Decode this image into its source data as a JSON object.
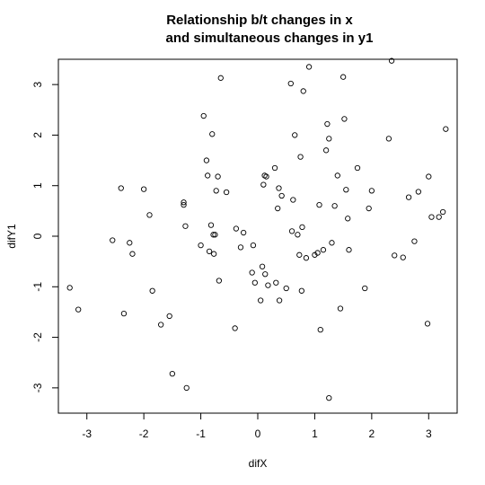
{
  "chart_data": {
    "type": "scatter",
    "title_line1": "Relationship b/t changes in x",
    "title_line2": "and simultaneous changes in y1",
    "xlabel": "difX",
    "ylabel": "difY1",
    "xlim": [
      -3.5,
      3.5
    ],
    "ylim": [
      -3.5,
      3.5
    ],
    "x_ticks": [
      -3,
      -2,
      -1,
      0,
      1,
      2,
      3
    ],
    "y_ticks": [
      -3,
      -2,
      -1,
      0,
      1,
      2,
      3
    ],
    "grid": false,
    "marker": "open-circle",
    "x": [
      -3.3,
      -3.15,
      -2.55,
      -2.4,
      -2.35,
      -2.25,
      -2.2,
      -2.0,
      -1.9,
      -1.85,
      -1.7,
      -1.55,
      -1.5,
      -1.3,
      -1.3,
      -1.27,
      -1.25,
      -1.0,
      -0.95,
      -0.9,
      -0.88,
      -0.85,
      -0.82,
      -0.8,
      -0.78,
      -0.77,
      -0.75,
      -0.73,
      -0.7,
      -0.68,
      -0.65,
      -0.55,
      -0.4,
      -0.38,
      -0.3,
      -0.25,
      -0.1,
      -0.08,
      -0.05,
      0.05,
      0.08,
      0.1,
      0.12,
      0.13,
      0.15,
      0.18,
      0.3,
      0.32,
      0.35,
      0.37,
      0.38,
      0.42,
      0.5,
      0.58,
      0.6,
      0.62,
      0.65,
      0.7,
      0.73,
      0.75,
      0.77,
      0.78,
      0.8,
      0.85,
      0.9,
      1.0,
      1.05,
      1.08,
      1.1,
      1.15,
      1.2,
      1.22,
      1.25,
      1.25,
      1.3,
      1.35,
      1.4,
      1.45,
      1.5,
      1.52,
      1.55,
      1.58,
      1.6,
      1.75,
      1.88,
      1.95,
      2.0,
      2.3,
      2.35,
      2.4,
      2.55,
      2.65,
      2.75,
      2.82,
      2.98,
      3.0,
      3.05,
      3.18,
      3.25,
      3.3
    ],
    "y": [
      -1.02,
      -1.45,
      -0.08,
      0.95,
      -1.53,
      -0.13,
      -0.35,
      0.93,
      0.42,
      -1.08,
      -1.75,
      -1.58,
      -2.72,
      0.67,
      0.62,
      0.2,
      -3.0,
      -0.18,
      2.38,
      1.5,
      1.2,
      -0.3,
      0.22,
      2.02,
      0.03,
      -0.35,
      0.03,
      0.9,
      1.18,
      -0.88,
      3.13,
      0.87,
      -1.82,
      0.15,
      -0.22,
      0.07,
      -0.72,
      -0.18,
      -0.92,
      -1.27,
      -0.6,
      1.02,
      1.2,
      -0.75,
      1.18,
      -0.97,
      1.35,
      -0.92,
      0.55,
      0.95,
      -1.27,
      0.8,
      -1.03,
      3.02,
      0.1,
      0.72,
      2.0,
      0.03,
      -0.37,
      1.57,
      -1.08,
      0.18,
      2.87,
      -0.43,
      3.35,
      -0.37,
      -0.33,
      0.62,
      -1.85,
      -0.27,
      1.7,
      2.22,
      1.93,
      -3.2,
      -0.13,
      0.6,
      1.2,
      -1.43,
      3.15,
      2.32,
      0.92,
      0.35,
      -0.27,
      1.35,
      -1.03,
      0.55,
      0.9,
      1.93,
      3.47,
      -0.38,
      -0.42,
      0.77,
      -0.1,
      0.88,
      -1.73,
      1.18,
      0.38,
      0.38,
      0.48,
      2.12
    ]
  }
}
